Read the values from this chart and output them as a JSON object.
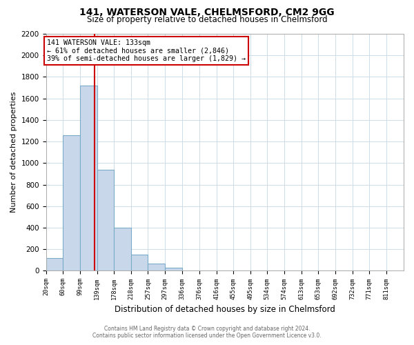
{
  "title1": "141, WATERSON VALE, CHELMSFORD, CM2 9GG",
  "title2": "Size of property relative to detached houses in Chelmsford",
  "xlabel": "Distribution of detached houses by size in Chelmsford",
  "ylabel": "Number of detached properties",
  "bar_color": "#c8d8ea",
  "bar_edge_color": "#7aaac8",
  "vline_color": "#cc0000",
  "vline_x": 133,
  "categories": [
    "20sqm",
    "60sqm",
    "99sqm",
    "139sqm",
    "178sqm",
    "218sqm",
    "257sqm",
    "297sqm",
    "336sqm",
    "376sqm",
    "416sqm",
    "455sqm",
    "495sqm",
    "534sqm",
    "574sqm",
    "613sqm",
    "653sqm",
    "692sqm",
    "732sqm",
    "771sqm",
    "811sqm"
  ],
  "bin_edges": [
    20,
    60,
    99,
    139,
    178,
    218,
    257,
    297,
    336,
    376,
    416,
    455,
    495,
    534,
    574,
    613,
    653,
    692,
    732,
    771,
    811
  ],
  "values": [
    120,
    1260,
    1720,
    940,
    400,
    150,
    65,
    30,
    0,
    0,
    0,
    0,
    0,
    0,
    0,
    0,
    0,
    0,
    0,
    0
  ],
  "ylim": [
    0,
    2200
  ],
  "yticks": [
    0,
    200,
    400,
    600,
    800,
    1000,
    1200,
    1400,
    1600,
    1800,
    2000,
    2200
  ],
  "annotation_title": "141 WATERSON VALE: 133sqm",
  "annotation_line1": "← 61% of detached houses are smaller (2,846)",
  "annotation_line2": "39% of semi-detached houses are larger (1,829) →",
  "annotation_box_color": "#ffffff",
  "annotation_box_edge": "#cc0000",
  "grid_color": "#ccdde8",
  "footer1": "Contains HM Land Registry data © Crown copyright and database right 2024.",
  "footer2": "Contains public sector information licensed under the Open Government Licence v3.0."
}
